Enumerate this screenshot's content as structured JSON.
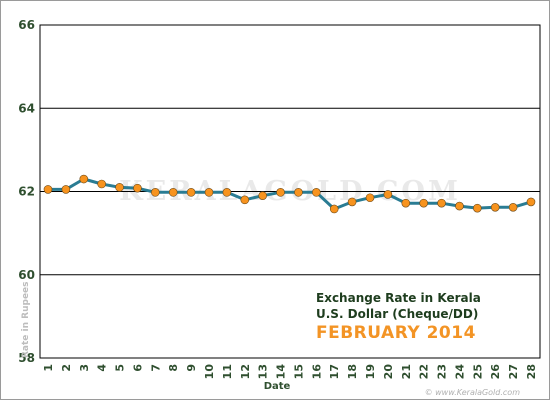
{
  "chart_data": {
    "type": "line",
    "title_lines": [
      "Exchange Rate in Kerala",
      "U.S. Dollar (Cheque/DD)",
      "FEBRUARY 2014"
    ],
    "xlabel": "Date",
    "ylabel": "Rate in Rupees",
    "watermark": "KERALAGOLD.COM",
    "footer": "© www.KeralaGold.com",
    "ylim": [
      58,
      66
    ],
    "yticks": [
      "58",
      "60",
      "62",
      "64",
      "66"
    ],
    "grid": "horizontal",
    "x": [
      "1",
      "2",
      "3",
      "4",
      "5",
      "6",
      "7",
      "8",
      "9",
      "10",
      "11",
      "12",
      "13",
      "14",
      "15",
      "16",
      "17",
      "18",
      "19",
      "20",
      "21",
      "22",
      "23",
      "24",
      "25",
      "26",
      "27",
      "28"
    ],
    "values": [
      62.05,
      62.05,
      62.3,
      62.18,
      62.1,
      62.08,
      61.98,
      61.98,
      61.98,
      61.98,
      61.98,
      61.8,
      61.9,
      61.98,
      61.98,
      61.98,
      61.58,
      61.75,
      61.85,
      61.93,
      61.72,
      61.72,
      61.72,
      61.65,
      61.6,
      61.62,
      61.62,
      61.75
    ],
    "colors": {
      "line": "#2a7c93",
      "marker": "#f7931e",
      "grid": "#000000",
      "text": "#2f4f2f"
    }
  }
}
